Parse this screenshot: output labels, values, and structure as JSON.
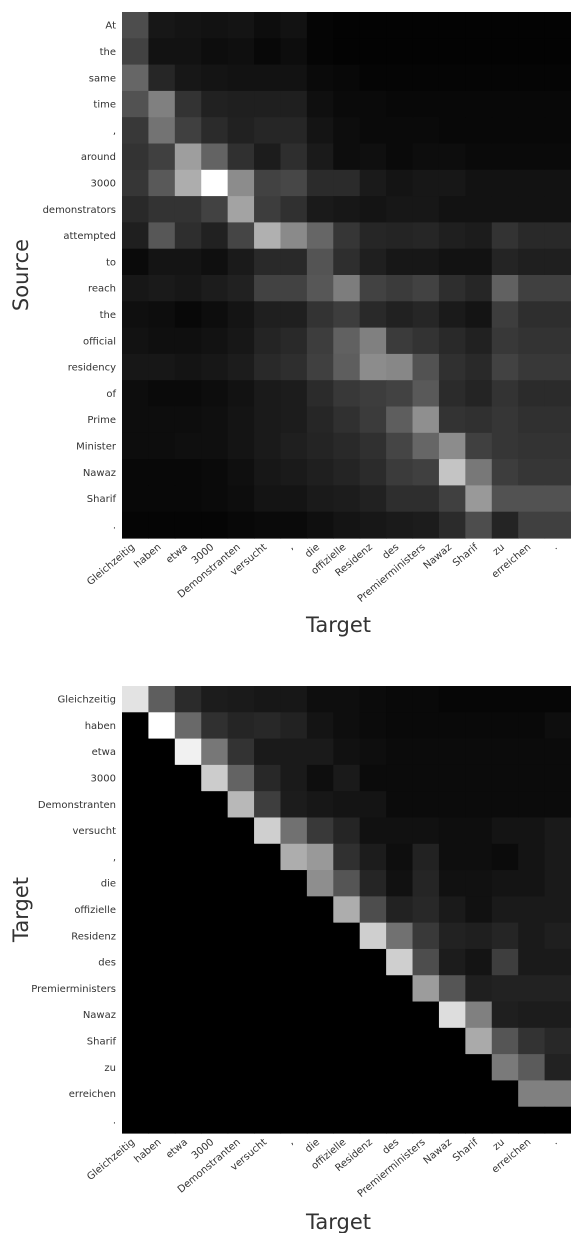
{
  "chart_data": [
    {
      "type": "heatmap",
      "colormap": "grayscale (black = 0, white = max)",
      "ylabel": "Source",
      "xlabel": "Target",
      "y_labels": [
        "At",
        "the",
        "same",
        "time",
        ",",
        "around",
        "3000",
        "demonstrators",
        "attempted",
        "to",
        "reach",
        "the",
        "official",
        "residency",
        "of",
        "Prime",
        "Minister",
        "Nawaz",
        "Sharif",
        "."
      ],
      "x_labels": [
        "Gleichzeitig",
        "haben",
        "etwa",
        "3000",
        "Demonstranten",
        "versucht",
        ",",
        "die",
        "offizielle",
        "Residenz",
        "des",
        "Premierministers",
        "Nawaz",
        "Sharif",
        "zu",
        "erreichen",
        "."
      ],
      "values": [
        [
          30,
          9,
          8,
          7,
          8,
          5,
          7,
          2,
          1,
          1,
          1,
          1,
          1,
          1,
          1,
          1,
          1
        ],
        [
          26,
          7,
          7,
          5,
          6,
          3,
          5,
          2,
          1,
          1,
          1,
          1,
          1,
          1,
          1,
          1,
          1
        ],
        [
          40,
          15,
          9,
          8,
          7,
          7,
          7,
          4,
          3,
          2,
          2,
          2,
          2,
          2,
          2,
          2,
          2
        ],
        [
          32,
          50,
          20,
          13,
          12,
          12,
          12,
          6,
          4,
          4,
          3,
          3,
          3,
          3,
          3,
          3,
          3
        ],
        [
          22,
          45,
          25,
          17,
          13,
          15,
          15,
          8,
          5,
          4,
          4,
          4,
          3,
          3,
          3,
          3,
          3
        ],
        [
          20,
          25,
          62,
          39,
          19,
          11,
          18,
          10,
          5,
          6,
          4,
          5,
          5,
          4,
          4,
          4,
          4
        ],
        [
          21,
          35,
          68,
          100,
          55,
          26,
          28,
          17,
          17,
          10,
          8,
          9,
          9,
          7,
          7,
          7,
          7
        ],
        [
          16,
          20,
          20,
          26,
          64,
          24,
          19,
          10,
          9,
          8,
          9,
          9,
          7,
          7,
          7,
          7,
          7
        ],
        [
          12,
          34,
          18,
          13,
          27,
          69,
          54,
          40,
          21,
          15,
          14,
          15,
          12,
          11,
          20,
          16,
          16
        ],
        [
          4,
          8,
          8,
          6,
          10,
          16,
          16,
          33,
          18,
          12,
          9,
          9,
          7,
          7,
          14,
          12,
          12
        ],
        [
          9,
          10,
          9,
          11,
          13,
          26,
          26,
          34,
          49,
          26,
          23,
          26,
          18,
          15,
          38,
          25,
          25
        ],
        [
          6,
          5,
          3,
          5,
          8,
          12,
          12,
          20,
          24,
          16,
          13,
          15,
          10,
          8,
          24,
          18,
          18
        ],
        [
          7,
          6,
          6,
          7,
          9,
          14,
          16,
          24,
          38,
          50,
          23,
          20,
          16,
          13,
          22,
          20,
          20
        ],
        [
          9,
          9,
          8,
          9,
          11,
          16,
          18,
          25,
          37,
          55,
          53,
          32,
          19,
          16,
          26,
          22,
          22
        ],
        [
          5,
          4,
          4,
          5,
          7,
          10,
          11,
          17,
          22,
          24,
          26,
          35,
          17,
          14,
          20,
          17,
          17
        ],
        [
          5,
          5,
          5,
          6,
          8,
          10,
          11,
          15,
          19,
          23,
          37,
          56,
          20,
          19,
          21,
          19,
          19
        ],
        [
          5,
          5,
          6,
          6,
          8,
          10,
          12,
          14,
          16,
          19,
          27,
          40,
          55,
          25,
          21,
          20,
          20
        ],
        [
          3,
          3,
          3,
          4,
          6,
          9,
          10,
          12,
          14,
          17,
          23,
          25,
          77,
          47,
          24,
          21,
          21
        ],
        [
          3,
          3,
          3,
          4,
          5,
          8,
          8,
          10,
          11,
          13,
          18,
          18,
          25,
          60,
          32,
          32,
          32
        ],
        [
          2,
          2,
          2,
          2,
          3,
          4,
          4,
          6,
          8,
          9,
          10,
          11,
          17,
          30,
          14,
          25,
          25
        ]
      ]
    },
    {
      "type": "heatmap",
      "colormap": "grayscale (black = 0, white = max)",
      "ylabel": "Target",
      "xlabel": "Target",
      "y_labels": [
        "Gleichzeitig",
        "haben",
        "etwa",
        "3000",
        "Demonstranten",
        "versucht",
        ",",
        "die",
        "offizielle",
        "Residenz",
        "des",
        "Premierministers",
        "Nawaz",
        "Sharif",
        "zu",
        "erreichen",
        "."
      ],
      "x_labels": [
        "Gleichzeitig",
        "haben",
        "etwa",
        "3000",
        "Demonstranten",
        "versucht",
        ",",
        "die",
        "offizielle",
        "Residenz",
        "des",
        "Premierministers",
        "Nawaz",
        "Sharif",
        "zu",
        "erreichen",
        "."
      ],
      "values": [
        [
          80,
          33,
          15,
          10,
          9,
          8,
          8,
          5,
          5,
          4,
          3,
          3,
          2,
          2,
          2,
          2,
          2
        ],
        [
          0,
          90,
          37,
          17,
          13,
          14,
          12,
          7,
          5,
          4,
          3,
          3,
          3,
          3,
          3,
          3,
          5
        ],
        [
          0,
          0,
          85,
          42,
          18,
          9,
          9,
          9,
          6,
          5,
          4,
          4,
          4,
          4,
          4,
          4,
          4
        ],
        [
          0,
          0,
          0,
          72,
          35,
          14,
          9,
          5,
          9,
          4,
          4,
          4,
          4,
          4,
          4,
          4,
          4
        ],
        [
          0,
          0,
          0,
          0,
          65,
          22,
          10,
          8,
          7,
          7,
          4,
          4,
          4,
          4,
          4,
          4,
          4
        ],
        [
          0,
          0,
          0,
          0,
          0,
          73,
          40,
          20,
          13,
          6,
          6,
          6,
          5,
          5,
          7,
          7,
          9
        ],
        [
          0,
          0,
          0,
          0,
          0,
          0,
          61,
          54,
          17,
          10,
          5,
          12,
          5,
          5,
          4,
          7,
          9
        ],
        [
          0,
          0,
          0,
          0,
          0,
          0,
          0,
          50,
          30,
          13,
          6,
          13,
          6,
          6,
          7,
          7,
          9
        ],
        [
          0,
          0,
          0,
          0,
          0,
          0,
          0,
          0,
          61,
          27,
          12,
          14,
          9,
          6,
          9,
          9,
          9
        ],
        [
          0,
          0,
          0,
          0,
          0,
          0,
          0,
          0,
          0,
          73,
          40,
          20,
          12,
          11,
          13,
          9,
          11
        ],
        [
          0,
          0,
          0,
          0,
          0,
          0,
          0,
          0,
          0,
          0,
          73,
          27,
          10,
          7,
          22,
          9,
          9
        ],
        [
          0,
          0,
          0,
          0,
          0,
          0,
          0,
          0,
          0,
          0,
          0,
          55,
          30,
          11,
          12,
          12,
          12
        ],
        [
          0,
          0,
          0,
          0,
          0,
          0,
          0,
          0,
          0,
          0,
          0,
          0,
          78,
          45,
          11,
          10,
          10
        ],
        [
          0,
          0,
          0,
          0,
          0,
          0,
          0,
          0,
          0,
          0,
          0,
          0,
          0,
          60,
          30,
          18,
          14
        ],
        [
          0,
          0,
          0,
          0,
          0,
          0,
          0,
          0,
          0,
          0,
          0,
          0,
          0,
          0,
          43,
          32,
          12
        ],
        [
          0,
          0,
          0,
          0,
          0,
          0,
          0,
          0,
          0,
          0,
          0,
          0,
          0,
          0,
          0,
          45,
          45
        ],
        [
          0,
          0,
          0,
          0,
          0,
          0,
          0,
          0,
          0,
          0,
          0,
          0,
          0,
          0,
          0,
          0,
          0
        ]
      ]
    }
  ]
}
